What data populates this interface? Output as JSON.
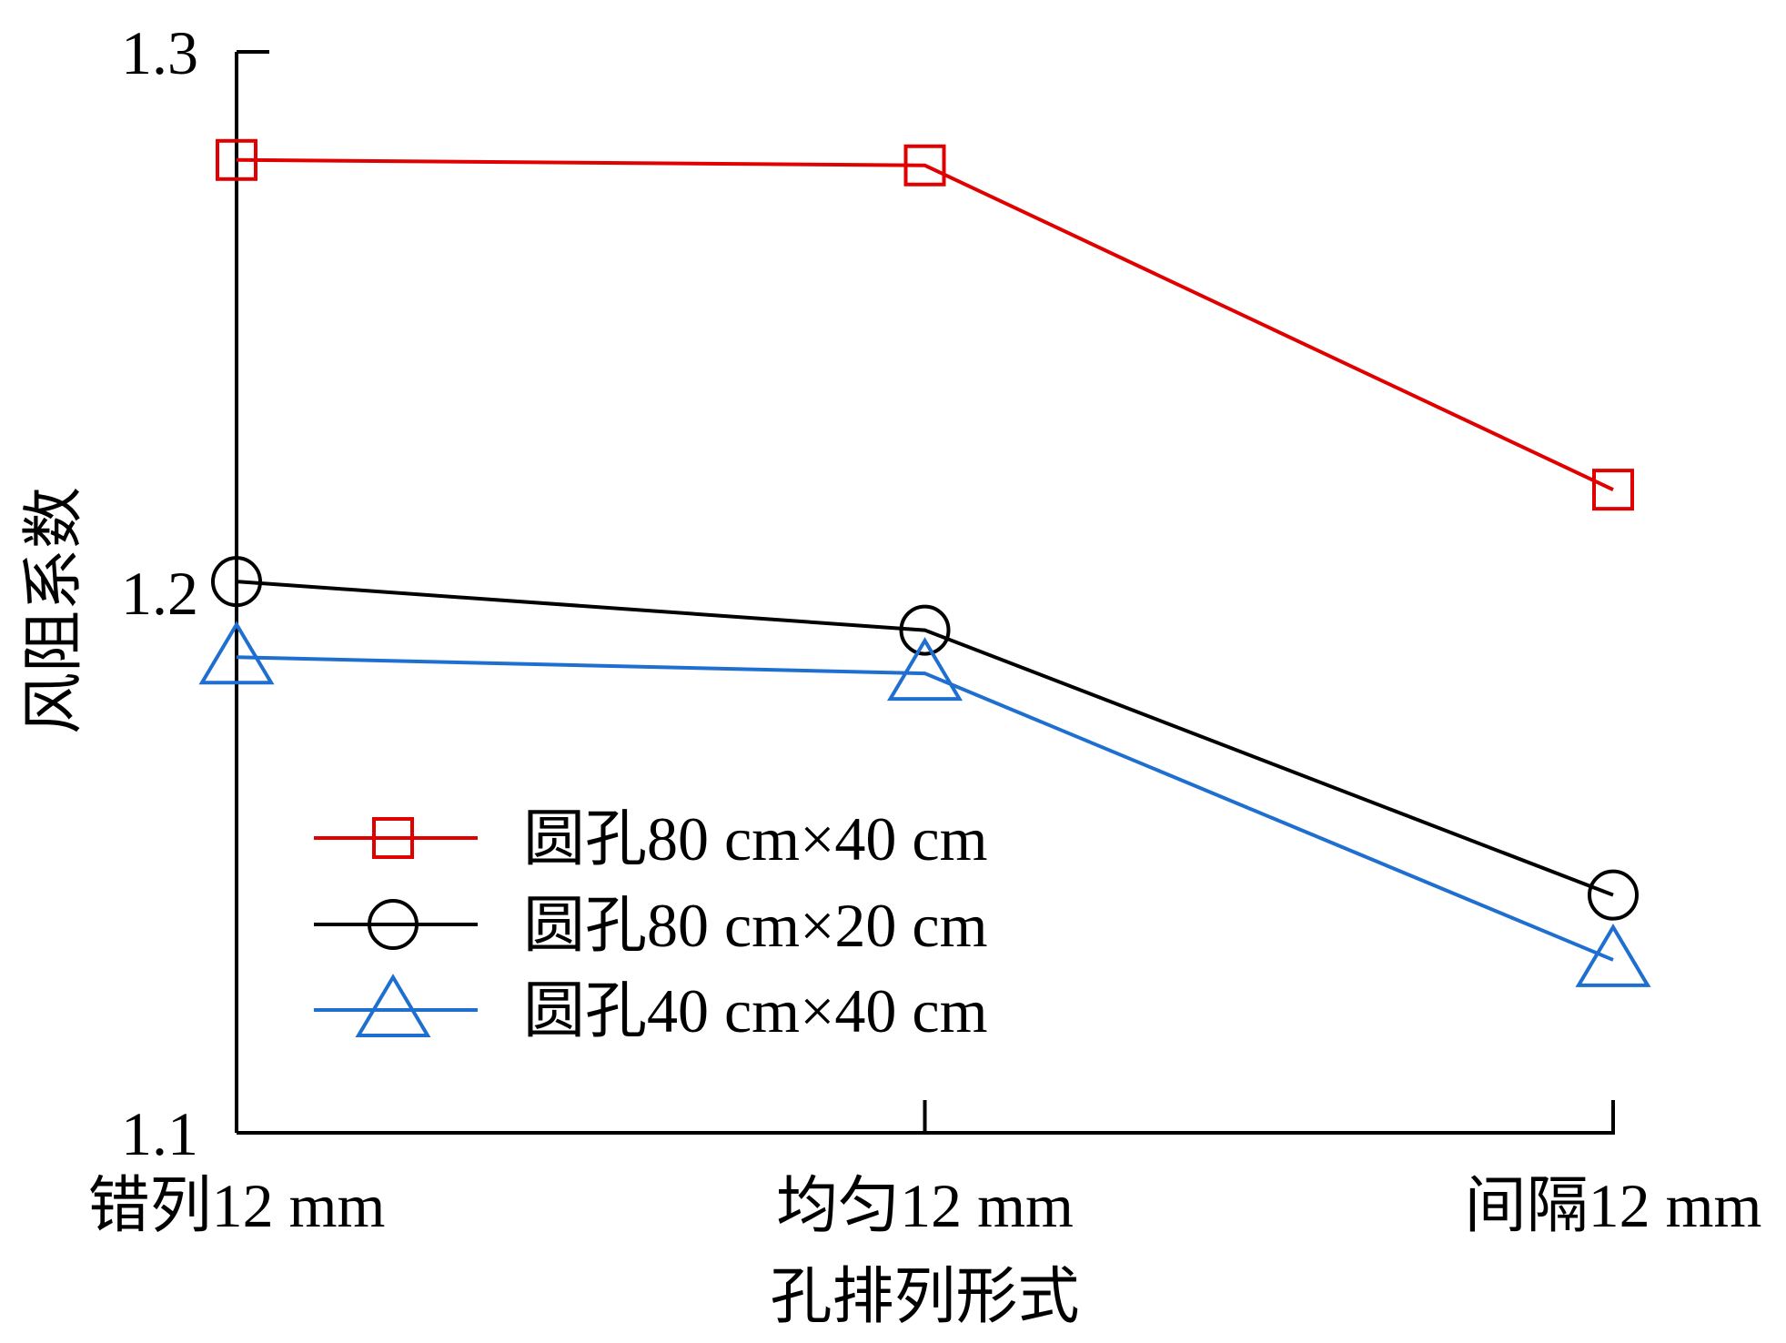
{
  "chart_data": {
    "type": "line",
    "xlabel": "孔排列形式",
    "ylabel": "风阻系数",
    "categories": [
      "错列12 mm",
      "均匀12 mm",
      "间隔12 mm"
    ],
    "ylim": [
      1.1,
      1.3
    ],
    "yticks": [
      "1.1",
      "1.2",
      "1.3"
    ],
    "grid": false,
    "legend_position": "lower-left",
    "series": [
      {
        "name": "圆孔80 cm×40 cm",
        "marker": "square",
        "color": "#e00000",
        "values": [
          1.28,
          1.279,
          1.219
        ]
      },
      {
        "name": "圆孔80 cm×20 cm",
        "marker": "circle",
        "color": "#000000",
        "values": [
          1.202,
          1.193,
          1.144
        ]
      },
      {
        "name": "圆孔40 cm×40 cm",
        "marker": "triangle",
        "color": "#1f6fd1",
        "values": [
          1.188,
          1.185,
          1.132
        ]
      }
    ]
  }
}
